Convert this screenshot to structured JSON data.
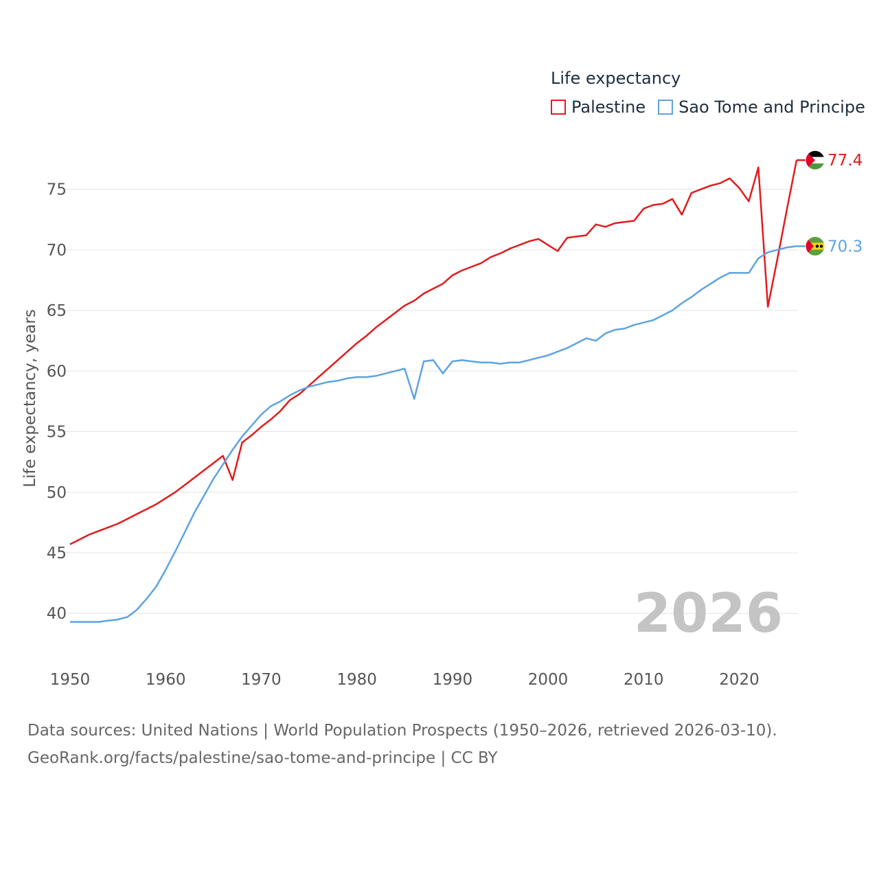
{
  "chart_data": {
    "type": "line",
    "title": "Life expectancy",
    "xlabel": "",
    "ylabel": "Life expectancy, years",
    "xlim": [
      1950,
      2026
    ],
    "ylim": [
      36.5,
      79
    ],
    "x_ticks": [
      1950,
      1960,
      1970,
      1980,
      1990,
      2000,
      2010,
      2020
    ],
    "y_ticks": [
      40,
      45,
      50,
      55,
      60,
      65,
      70,
      75
    ],
    "year_label": "2026",
    "grid": true,
    "legend_position": "top-right",
    "series": [
      {
        "name": "Palestine",
        "color": "#e31a1c",
        "end_label": "77.4",
        "flag": "palestine-flag-icon",
        "x": [
          1950,
          1951,
          1952,
          1953,
          1954,
          1955,
          1956,
          1957,
          1958,
          1959,
          1960,
          1961,
          1962,
          1963,
          1964,
          1965,
          1966,
          1967,
          1968,
          1969,
          1970,
          1971,
          1972,
          1973,
          1974,
          1975,
          1976,
          1977,
          1978,
          1979,
          1980,
          1981,
          1982,
          1983,
          1984,
          1985,
          1986,
          1987,
          1988,
          1989,
          1990,
          1991,
          1992,
          1993,
          1994,
          1995,
          1996,
          1997,
          1998,
          1999,
          2000,
          2001,
          2002,
          2003,
          2004,
          2005,
          2006,
          2007,
          2008,
          2009,
          2010,
          2011,
          2012,
          2013,
          2014,
          2015,
          2016,
          2017,
          2018,
          2019,
          2020,
          2021,
          2022,
          2023,
          2024,
          2025,
          2026
        ],
        "values": [
          45.7,
          46.1,
          46.5,
          46.8,
          47.1,
          47.4,
          47.8,
          48.2,
          48.6,
          49.0,
          49.5,
          50.0,
          50.6,
          51.2,
          51.8,
          52.4,
          53.0,
          51.0,
          54.1,
          54.7,
          55.4,
          56.0,
          56.7,
          57.6,
          58.1,
          58.8,
          59.5,
          60.2,
          60.9,
          61.6,
          62.3,
          62.9,
          63.6,
          64.2,
          64.8,
          65.4,
          65.8,
          66.4,
          66.8,
          67.2,
          67.9,
          68.3,
          68.6,
          68.9,
          69.4,
          69.7,
          70.1,
          70.4,
          70.7,
          70.9,
          70.4,
          69.9,
          71.0,
          71.1,
          71.2,
          72.1,
          71.9,
          72.2,
          72.3,
          72.4,
          73.4,
          73.7,
          73.8,
          74.2,
          72.9,
          74.7,
          75.0,
          75.3,
          75.5,
          75.9,
          75.1,
          74.0,
          76.8,
          65.3,
          69.3,
          73.4,
          77.4
        ]
      },
      {
        "name": "Sao Tome and Principe",
        "color": "#5da3e0",
        "end_label": "70.3",
        "flag": "sao-tome-flag-icon",
        "x": [
          1950,
          1951,
          1952,
          1953,
          1954,
          1955,
          1956,
          1957,
          1958,
          1959,
          1960,
          1961,
          1962,
          1963,
          1964,
          1965,
          1966,
          1967,
          1968,
          1969,
          1970,
          1971,
          1972,
          1973,
          1974,
          1975,
          1976,
          1977,
          1978,
          1979,
          1980,
          1981,
          1982,
          1983,
          1984,
          1985,
          1986,
          1987,
          1988,
          1989,
          1990,
          1991,
          1992,
          1993,
          1994,
          1995,
          1996,
          1997,
          1998,
          1999,
          2000,
          2001,
          2002,
          2003,
          2004,
          2005,
          2006,
          2007,
          2008,
          2009,
          2010,
          2011,
          2012,
          2013,
          2014,
          2015,
          2016,
          2017,
          2018,
          2019,
          2020,
          2021,
          2022,
          2023,
          2024,
          2025,
          2026
        ],
        "values": [
          39.3,
          39.3,
          39.3,
          39.3,
          39.4,
          39.5,
          39.7,
          40.3,
          41.2,
          42.2,
          43.6,
          45.1,
          46.7,
          48.3,
          49.7,
          51.1,
          52.3,
          53.5,
          54.6,
          55.5,
          56.4,
          57.1,
          57.5,
          58.0,
          58.4,
          58.7,
          58.9,
          59.1,
          59.2,
          59.4,
          59.5,
          59.5,
          59.6,
          59.8,
          60.0,
          60.2,
          57.7,
          60.8,
          60.9,
          59.8,
          60.8,
          60.9,
          60.8,
          60.7,
          60.7,
          60.6,
          60.7,
          60.7,
          60.9,
          61.1,
          61.3,
          61.6,
          61.9,
          62.3,
          62.7,
          62.5,
          63.1,
          63.4,
          63.5,
          63.8,
          64.0,
          64.2,
          64.6,
          65.0,
          65.6,
          66.1,
          66.7,
          67.2,
          67.7,
          68.1,
          68.1,
          68.1,
          69.3,
          69.8,
          70.0,
          70.2,
          70.3
        ]
      }
    ]
  },
  "source": {
    "line1": "Data sources: United Nations | World Population Prospects (1950–2026, retrieved 2026-03-10).",
    "line2": "GeoRank.org/facts/palestine/sao-tome-and-principe | CC BY"
  }
}
